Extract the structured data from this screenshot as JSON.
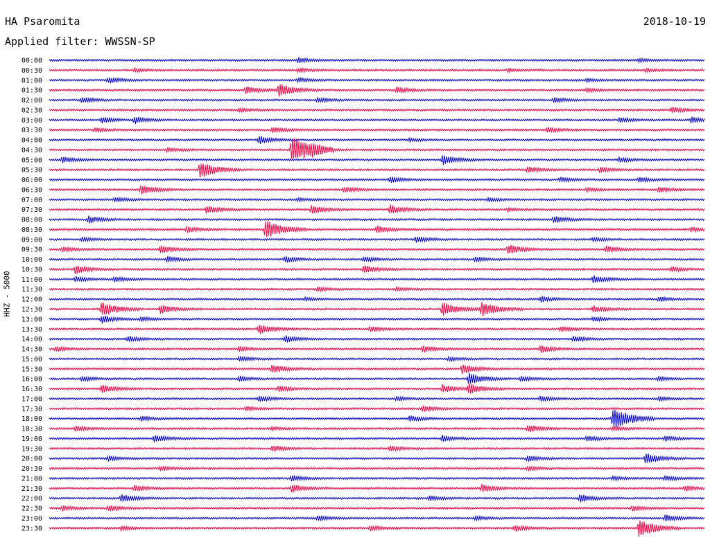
{
  "header": {
    "station": "HA Psaromita",
    "date": "2018-10-19",
    "filter": "Applied filter: WWSSN-SP"
  },
  "chart_data": {
    "type": "line",
    "title": "HA Psaromita",
    "ylabel": "HHZ - 5000",
    "colors": [
      "#0000dd",
      "#ff0044"
    ],
    "traces": [
      {
        "label": "00:00",
        "events": [
          [
            0.38,
            0.5
          ],
          [
            0.9,
            0.3
          ]
        ]
      },
      {
        "label": "00:30",
        "events": [
          [
            0.13,
            0.3
          ],
          [
            0.38,
            0.4
          ],
          [
            0.7,
            0.3
          ],
          [
            0.91,
            0.3
          ]
        ]
      },
      {
        "label": "01:00",
        "events": [
          [
            0.09,
            0.6
          ],
          [
            0.38,
            0.4
          ],
          [
            0.82,
            0.3
          ]
        ]
      },
      {
        "label": "01:30",
        "events": [
          [
            0.3,
            0.8
          ],
          [
            0.35,
            1.3
          ],
          [
            0.53,
            0.6
          ],
          [
            0.82,
            0.4
          ]
        ]
      },
      {
        "label": "02:00",
        "events": [
          [
            0.05,
            0.6
          ],
          [
            0.41,
            0.5
          ],
          [
            0.77,
            0.5
          ]
        ]
      },
      {
        "label": "02:30",
        "events": [
          [
            0.29,
            0.4
          ],
          [
            0.95,
            0.6
          ]
        ]
      },
      {
        "label": "03:00",
        "events": [
          [
            0.08,
            0.6
          ],
          [
            0.13,
            0.7
          ],
          [
            0.87,
            0.5
          ],
          [
            0.98,
            0.6
          ]
        ]
      },
      {
        "label": "03:30",
        "events": [
          [
            0.07,
            0.4
          ],
          [
            0.34,
            0.6
          ],
          [
            0.76,
            0.5
          ]
        ]
      },
      {
        "label": "04:00",
        "events": [
          [
            0.32,
            0.8
          ],
          [
            0.55,
            0.3
          ]
        ]
      },
      {
        "label": "04:30",
        "events": [
          [
            0.37,
            2.8
          ],
          [
            0.4,
            0.7
          ],
          [
            0.18,
            0.4
          ]
        ]
      },
      {
        "label": "05:00",
        "events": [
          [
            0.02,
            0.6
          ],
          [
            0.6,
            1.0
          ],
          [
            0.87,
            0.5
          ]
        ]
      },
      {
        "label": "05:30",
        "events": [
          [
            0.23,
            1.7
          ],
          [
            0.73,
            0.6
          ],
          [
            0.84,
            0.5
          ]
        ]
      },
      {
        "label": "06:00",
        "events": [
          [
            0.52,
            0.6
          ],
          [
            0.78,
            0.5
          ],
          [
            0.9,
            0.5
          ]
        ]
      },
      {
        "label": "06:30",
        "events": [
          [
            0.14,
            1.0
          ],
          [
            0.45,
            0.6
          ],
          [
            0.82,
            0.4
          ],
          [
            0.93,
            0.5
          ]
        ]
      },
      {
        "label": "07:00",
        "events": [
          [
            0.1,
            0.5
          ],
          [
            0.38,
            0.3
          ],
          [
            0.67,
            0.4
          ]
        ]
      },
      {
        "label": "07:30",
        "events": [
          [
            0.24,
            0.8
          ],
          [
            0.4,
            0.9
          ],
          [
            0.52,
            0.9
          ],
          [
            0.7,
            0.3
          ]
        ]
      },
      {
        "label": "08:00",
        "events": [
          [
            0.06,
            0.7
          ],
          [
            0.77,
            0.7
          ]
        ]
      },
      {
        "label": "08:30",
        "events": [
          [
            0.21,
            0.6
          ],
          [
            0.33,
            1.9
          ],
          [
            0.5,
            0.7
          ],
          [
            0.98,
            0.4
          ]
        ]
      },
      {
        "label": "09:00",
        "events": [
          [
            0.05,
            0.4
          ],
          [
            0.56,
            0.6
          ],
          [
            0.83,
            0.4
          ]
        ]
      },
      {
        "label": "09:30",
        "events": [
          [
            0.02,
            0.5
          ],
          [
            0.17,
            0.8
          ],
          [
            0.7,
            1.0
          ],
          [
            0.85,
            0.7
          ]
        ]
      },
      {
        "label": "10:00",
        "events": [
          [
            0.18,
            0.6
          ],
          [
            0.36,
            0.6
          ],
          [
            0.48,
            0.5
          ],
          [
            0.65,
            0.5
          ]
        ]
      },
      {
        "label": "10:30",
        "events": [
          [
            0.04,
            0.9
          ],
          [
            0.48,
            0.8
          ],
          [
            0.95,
            0.5
          ]
        ]
      },
      {
        "label": "11:00",
        "events": [
          [
            0.04,
            0.5
          ],
          [
            0.1,
            0.5
          ],
          [
            0.83,
            0.8
          ]
        ]
      },
      {
        "label": "11:30",
        "events": [
          [
            0.41,
            0.4
          ],
          [
            0.53,
            0.3
          ]
        ]
      },
      {
        "label": "12:00",
        "events": [
          [
            0.39,
            0.3
          ],
          [
            0.75,
            0.6
          ],
          [
            0.93,
            0.5
          ]
        ]
      },
      {
        "label": "12:30",
        "events": [
          [
            0.08,
            1.5
          ],
          [
            0.17,
            0.9
          ],
          [
            0.6,
            1.4
          ],
          [
            0.66,
            1.5
          ],
          [
            0.83,
            0.7
          ]
        ]
      },
      {
        "label": "13:00",
        "events": [
          [
            0.08,
            0.8
          ],
          [
            0.14,
            0.4
          ],
          [
            0.83,
            0.5
          ]
        ]
      },
      {
        "label": "13:30",
        "events": [
          [
            0.32,
            1.0
          ],
          [
            0.49,
            0.5
          ],
          [
            0.78,
            0.5
          ]
        ]
      },
      {
        "label": "14:00",
        "events": [
          [
            0.12,
            0.6
          ],
          [
            0.36,
            0.7
          ],
          [
            0.8,
            0.6
          ]
        ]
      },
      {
        "label": "14:30",
        "events": [
          [
            0.01,
            0.5
          ],
          [
            0.29,
            0.5
          ],
          [
            0.57,
            0.7
          ],
          [
            0.75,
            0.7
          ]
        ]
      },
      {
        "label": "15:00",
        "events": [
          [
            0.29,
            0.5
          ],
          [
            0.61,
            0.4
          ]
        ]
      },
      {
        "label": "15:30",
        "events": [
          [
            0.34,
            0.9
          ],
          [
            0.63,
            1.0
          ]
        ]
      },
      {
        "label": "16:00",
        "events": [
          [
            0.05,
            0.5
          ],
          [
            0.29,
            0.5
          ],
          [
            0.64,
            1.2
          ],
          [
            0.72,
            0.5
          ],
          [
            0.93,
            0.4
          ]
        ]
      },
      {
        "label": "16:30",
        "events": [
          [
            0.08,
            0.8
          ],
          [
            0.35,
            0.6
          ],
          [
            0.6,
            0.8
          ],
          [
            0.64,
            1.0
          ]
        ]
      },
      {
        "label": "17:00",
        "events": [
          [
            0.32,
            0.6
          ],
          [
            0.53,
            0.4
          ],
          [
            0.75,
            0.6
          ],
          [
            0.93,
            0.4
          ]
        ]
      },
      {
        "label": "17:30",
        "events": [
          [
            0.3,
            0.4
          ],
          [
            0.57,
            0.6
          ]
        ]
      },
      {
        "label": "18:00",
        "events": [
          [
            0.14,
            0.5
          ],
          [
            0.55,
            0.6
          ],
          [
            0.86,
            2.3
          ]
        ]
      },
      {
        "label": "18:30",
        "events": [
          [
            0.04,
            0.5
          ],
          [
            0.34,
            0.3
          ],
          [
            0.73,
            0.8
          ],
          [
            0.86,
            0.4
          ]
        ]
      },
      {
        "label": "19:00",
        "events": [
          [
            0.16,
            0.7
          ],
          [
            0.6,
            0.6
          ],
          [
            0.82,
            0.6
          ],
          [
            0.94,
            0.5
          ]
        ]
      },
      {
        "label": "19:30",
        "events": [
          [
            0.34,
            0.6
          ],
          [
            0.52,
            0.5
          ]
        ]
      },
      {
        "label": "20:00",
        "events": [
          [
            0.09,
            0.5
          ],
          [
            0.73,
            0.6
          ],
          [
            0.91,
            1.1
          ]
        ]
      },
      {
        "label": "20:30",
        "events": [
          [
            0.17,
            0.4
          ],
          [
            0.73,
            0.4
          ]
        ]
      },
      {
        "label": "21:00",
        "events": [
          [
            0.37,
            0.6
          ],
          [
            0.86,
            0.4
          ],
          [
            0.94,
            0.5
          ]
        ]
      },
      {
        "label": "21:30",
        "events": [
          [
            0.13,
            0.6
          ],
          [
            0.37,
            0.8
          ],
          [
            0.66,
            0.8
          ],
          [
            0.97,
            0.5
          ]
        ]
      },
      {
        "label": "22:00",
        "events": [
          [
            0.11,
            0.8
          ],
          [
            0.58,
            0.5
          ],
          [
            0.81,
            0.8
          ]
        ]
      },
      {
        "label": "22:30",
        "events": [
          [
            0.02,
            0.5
          ],
          [
            0.09,
            0.6
          ],
          [
            0.89,
            0.5
          ]
        ]
      },
      {
        "label": "23:00",
        "events": [
          [
            0.41,
            0.5
          ],
          [
            0.65,
            0.4
          ],
          [
            0.94,
            0.7
          ]
        ]
      },
      {
        "label": "23:30",
        "events": [
          [
            0.11,
            0.4
          ],
          [
            0.49,
            0.5
          ],
          [
            0.71,
            0.6
          ],
          [
            0.9,
            1.8
          ]
        ]
      }
    ]
  }
}
